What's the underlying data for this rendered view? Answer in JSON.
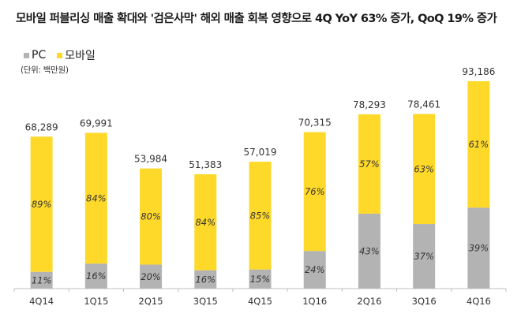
{
  "chart_data": {
    "type": "bar",
    "stacked": true,
    "title": "모바일 퍼블리싱 매출 확대와 '검은사막' 해외 매출 회복 영향으로 4Q YoY 63% 증가, QoQ 19% 증가",
    "unit_note": "(단위: 백만원)",
    "xlabel": "",
    "ylabel": "",
    "ylim": [
      0,
      93186
    ],
    "grid": false,
    "legend_position": "top-left",
    "categories": [
      "4Q14",
      "1Q15",
      "2Q15",
      "3Q15",
      "4Q15",
      "1Q16",
      "2Q16",
      "3Q16",
      "4Q16"
    ],
    "totals": [
      68289,
      69991,
      53984,
      51383,
      57019,
      70315,
      78293,
      78461,
      93186
    ],
    "total_labels": [
      "68,289",
      "69,991",
      "53,984",
      "51,383",
      "57,019",
      "70,315",
      "78,293",
      "78,461",
      "93,186"
    ],
    "series": [
      {
        "name": "PC",
        "color": "#b3b3b3",
        "share_pct": [
          11,
          16,
          20,
          16,
          15,
          24,
          43,
          37,
          39
        ],
        "labels": [
          "11%",
          "16%",
          "20%",
          "16%",
          "15%",
          "24%",
          "43%",
          "37%",
          "39%"
        ]
      },
      {
        "name": "모바일",
        "color": "#ffd92a",
        "share_pct": [
          89,
          84,
          80,
          84,
          85,
          76,
          57,
          63,
          61
        ],
        "labels": [
          "89%",
          "84%",
          "80%",
          "84%",
          "85%",
          "76%",
          "57%",
          "63%",
          "61%"
        ]
      }
    ]
  },
  "legend": {
    "pc_label": "PC",
    "mobile_label": "모바일"
  }
}
